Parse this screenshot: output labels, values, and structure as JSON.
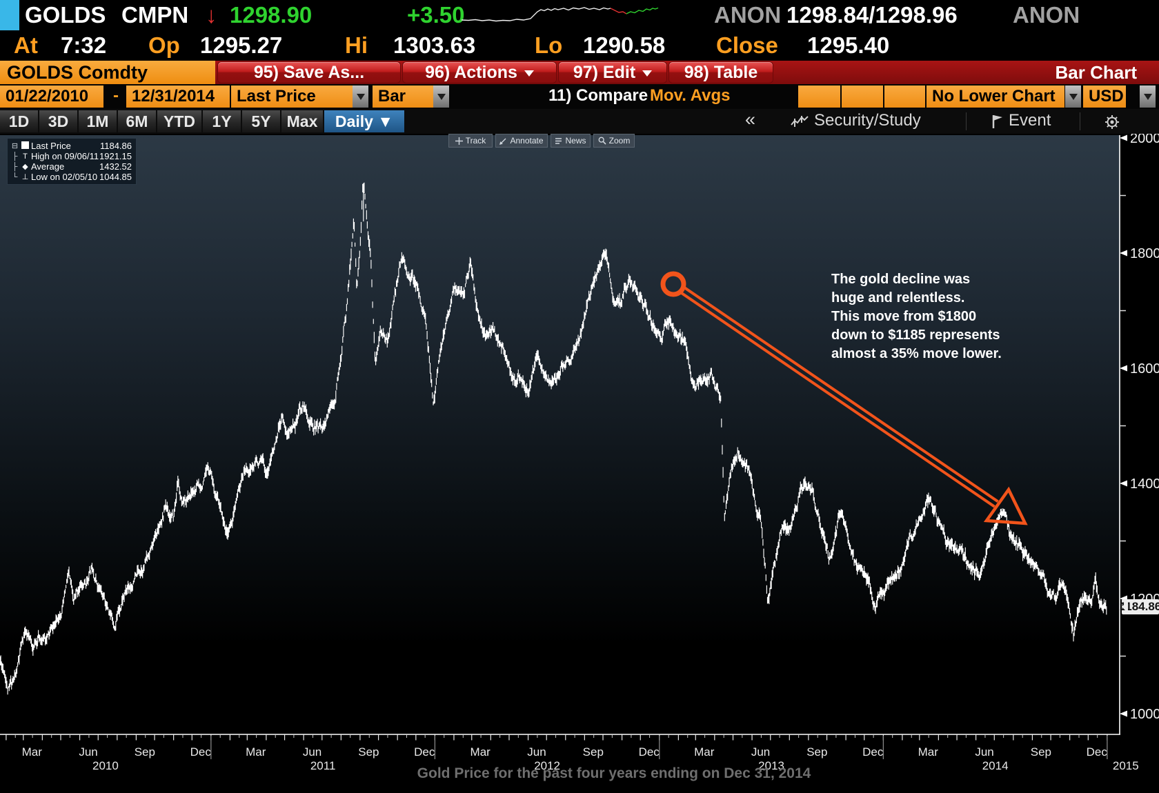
{
  "top_bar": {
    "ticker": "GOLDS",
    "market": "CMPN",
    "down_arrow": "↓",
    "last_price": "1298.90",
    "change": "+3.50",
    "anon_left": "ANON",
    "bid_ask": "1298.84/1298.96",
    "anon_right": "ANON",
    "stats": {
      "at_label": "At",
      "at": "7:32",
      "op_label": "Op",
      "op": "1295.27",
      "hi_label": "Hi",
      "hi": "1303.63",
      "lo_label": "Lo",
      "lo": "1290.58",
      "close_label": "Close",
      "close": "1295.40"
    }
  },
  "menu_bar": {
    "tab": "GOLDS Comdty",
    "save_as": "95) Save As...",
    "actions": "96) Actions",
    "edit": "97) Edit",
    "table": "98) Table",
    "right_label": "Bar Chart"
  },
  "settings_bar": {
    "date_from": "01/22/2010",
    "range_dash": "-",
    "date_to": "12/31/2014",
    "price_field": "Last Price",
    "chart_style": "Bar",
    "compare_label": "11) Compare",
    "mov_avgs_label": "Mov. Avgs",
    "lower_chart": "No Lower Chart",
    "currency": "USD"
  },
  "period_bar": {
    "periods": [
      "1D",
      "3D",
      "1M",
      "6M",
      "YTD",
      "1Y",
      "5Y",
      "Max"
    ],
    "frequency": "Daily ▼",
    "collapse": "«",
    "security_study": "Security/Study",
    "event": "Event"
  },
  "chart_toolbar": {
    "track": "Track",
    "annotate": "Annotate",
    "news": "News",
    "zoom": "Zoom"
  },
  "legend": {
    "rows": [
      {
        "label": "Last Price",
        "value": "1184.86"
      },
      {
        "label": "High on 09/06/11",
        "value": "1921.15"
      },
      {
        "label": "Average",
        "value": "1432.52"
      },
      {
        "label": "Low on 02/05/10",
        "value": "1044.85"
      }
    ]
  },
  "annotation": {
    "lines": [
      "The gold decline was",
      "huge and relentless.",
      "This move from $1800",
      "down to $1185 represents",
      "almost a 35% move lower."
    ]
  },
  "caption": "Gold Price for the past four years ending on Dec 31, 2014",
  "colors": {
    "accent_orange": "#f08c12",
    "annotation_orange": "#f2541b",
    "up_green": "#2fd32f",
    "down_red": "#e03030",
    "daily_blue": "#2a6da6",
    "bar_white": "#ffffff"
  },
  "chart_data": {
    "type": "bar",
    "security": "GOLDS Comdty",
    "price_field": "Last Price",
    "frequency": "Daily",
    "date_range": [
      "01/22/2010",
      "12/31/2014"
    ],
    "last_price": 1184.86,
    "last_price_label": "1184.86",
    "high": {
      "date": "09/06/11",
      "value": 1921.15
    },
    "average": 1432.52,
    "low": {
      "date": "02/05/10",
      "value": 1044.85
    },
    "ylim": [
      965,
      2005
    ],
    "y_ticks": [
      1000,
      1200,
      1400,
      1600,
      1800,
      2000
    ],
    "y_minor_ticks": [
      1100,
      1300,
      1500,
      1700,
      1900
    ],
    "x_quarter_labels": [
      "Mar",
      "Jun",
      "Sep",
      "Dec"
    ],
    "x_year_labels": [
      "2010",
      "2011",
      "2012",
      "2013",
      "2014",
      "2015"
    ],
    "anchors": [
      [
        0,
        1092
      ],
      [
        8,
        1078
      ],
      [
        14,
        1044.85
      ],
      [
        26,
        1066
      ],
      [
        40,
        1134
      ],
      [
        52,
        1106
      ],
      [
        62,
        1125
      ],
      [
        75,
        1136
      ],
      [
        90,
        1150
      ],
      [
        105,
        1205
      ],
      [
        112,
        1240
      ],
      [
        120,
        1180
      ],
      [
        131,
        1214
      ],
      [
        140,
        1222
      ],
      [
        151,
        1256
      ],
      [
        160,
        1232
      ],
      [
        170,
        1200
      ],
      [
        186,
        1160
      ],
      [
        200,
        1212
      ],
      [
        215,
        1232
      ],
      [
        228,
        1250
      ],
      [
        240,
        1275
      ],
      [
        255,
        1310
      ],
      [
        270,
        1368
      ],
      [
        283,
        1342
      ],
      [
        290,
        1405
      ],
      [
        298,
        1352
      ],
      [
        310,
        1375
      ],
      [
        322,
        1388
      ],
      [
        336,
        1405
      ],
      [
        343,
        1420
      ],
      [
        355,
        1368
      ],
      [
        370,
        1312
      ],
      [
        382,
        1350
      ],
      [
        398,
        1415
      ],
      [
        412,
        1432
      ],
      [
        425,
        1438
      ],
      [
        434,
        1418
      ],
      [
        450,
        1472
      ],
      [
        460,
        1527
      ],
      [
        468,
        1492
      ],
      [
        480,
        1512
      ],
      [
        494,
        1535
      ],
      [
        505,
        1512
      ],
      [
        520,
        1500
      ],
      [
        532,
        1512
      ],
      [
        545,
        1550
      ],
      [
        556,
        1628
      ],
      [
        566,
        1718
      ],
      [
        572,
        1790
      ],
      [
        577,
        1852
      ],
      [
        582,
        1740
      ],
      [
        588,
        1830
      ],
      [
        592,
        1921.15
      ],
      [
        598,
        1858
      ],
      [
        605,
        1780
      ],
      [
        612,
        1598
      ],
      [
        620,
        1668
      ],
      [
        632,
        1640
      ],
      [
        645,
        1720
      ],
      [
        655,
        1795
      ],
      [
        665,
        1760
      ],
      [
        680,
        1748
      ],
      [
        692,
        1692
      ],
      [
        700,
        1608
      ],
      [
        706,
        1540
      ],
      [
        714,
        1600
      ],
      [
        726,
        1660
      ],
      [
        740,
        1742
      ],
      [
        755,
        1725
      ],
      [
        767,
        1785
      ],
      [
        778,
        1700
      ],
      [
        790,
        1648
      ],
      [
        805,
        1662
      ],
      [
        820,
        1640
      ],
      [
        835,
        1580
      ],
      [
        850,
        1590
      ],
      [
        862,
        1560
      ],
      [
        875,
        1620
      ],
      [
        888,
        1590
      ],
      [
        900,
        1578
      ],
      [
        915,
        1602
      ],
      [
        930,
        1612
      ],
      [
        945,
        1660
      ],
      [
        960,
        1738
      ],
      [
        975,
        1770
      ],
      [
        985,
        1788
      ],
      [
        1000,
        1720
      ],
      [
        1012,
        1710
      ],
      [
        1025,
        1752
      ],
      [
        1040,
        1730
      ],
      [
        1055,
        1695
      ],
      [
        1070,
        1658
      ],
      [
        1082,
        1662
      ],
      [
        1092,
        1686
      ],
      [
        1105,
        1662
      ],
      [
        1118,
        1640
      ],
      [
        1130,
        1582
      ],
      [
        1145,
        1592
      ],
      [
        1160,
        1598
      ],
      [
        1175,
        1560
      ],
      [
        1181,
        1355
      ],
      [
        1192,
        1425
      ],
      [
        1203,
        1468
      ],
      [
        1215,
        1440
      ],
      [
        1228,
        1390
      ],
      [
        1240,
        1352
      ],
      [
        1252,
        1192
      ],
      [
        1262,
        1250
      ],
      [
        1275,
        1325
      ],
      [
        1290,
        1312
      ],
      [
        1302,
        1372
      ],
      [
        1313,
        1410
      ],
      [
        1325,
        1388
      ],
      [
        1340,
        1322
      ],
      [
        1355,
        1272
      ],
      [
        1368,
        1342
      ],
      [
        1380,
        1318
      ],
      [
        1395,
        1262
      ],
      [
        1410,
        1244
      ],
      [
        1427,
        1190
      ],
      [
        1440,
        1202
      ],
      [
        1455,
        1238
      ],
      [
        1470,
        1252
      ],
      [
        1485,
        1292
      ],
      [
        1500,
        1332
      ],
      [
        1515,
        1382
      ],
      [
        1528,
        1340
      ],
      [
        1542,
        1300
      ],
      [
        1555,
        1290
      ],
      [
        1572,
        1262
      ],
      [
        1588,
        1244
      ],
      [
        1602,
        1252
      ],
      [
        1618,
        1310
      ],
      [
        1632,
        1338
      ],
      [
        1645,
        1308
      ],
      [
        1660,
        1295
      ],
      [
        1675,
        1268
      ],
      [
        1690,
        1255
      ],
      [
        1705,
        1230
      ],
      [
        1720,
        1212
      ],
      [
        1735,
        1238
      ],
      [
        1742,
        1200
      ],
      [
        1750,
        1145
      ],
      [
        1758,
        1182
      ],
      [
        1768,
        1198
      ],
      [
        1778,
        1186
      ],
      [
        1786,
        1220
      ],
      [
        1794,
        1172
      ],
      [
        1800,
        1190
      ],
      [
        1804,
        1184.86
      ]
    ]
  }
}
